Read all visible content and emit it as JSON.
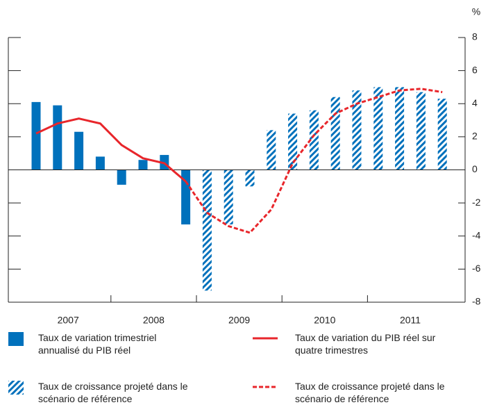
{
  "chart_data": {
    "type": "bar-line",
    "y_unit": "%",
    "year_labels": [
      "2007",
      "2008",
      "2009",
      "2010",
      "2011"
    ],
    "ylim": [
      -8,
      8
    ],
    "yticks": [
      -8,
      -6,
      -4,
      -2,
      0,
      2,
      4,
      6,
      8
    ],
    "series": [
      {
        "name": "Taux de variation trimestriel annualisé du PIB réel",
        "kind": "bar",
        "color": "#0071bc",
        "values": [
          4.1,
          3.9,
          2.3,
          0.8,
          -0.9,
          0.6,
          0.9,
          -3.3,
          null,
          null,
          null,
          null,
          null,
          null,
          null,
          null,
          null,
          null,
          null,
          null
        ]
      },
      {
        "name": "Taux de croissance projeté dans le scénario de référence",
        "kind": "hatched-bar",
        "color": "#0071bc",
        "values": [
          null,
          null,
          null,
          null,
          null,
          null,
          null,
          null,
          -7.3,
          -3.3,
          -1.0,
          2.4,
          3.4,
          3.6,
          4.4,
          4.8,
          5.0,
          5.0,
          4.7,
          4.3
        ]
      },
      {
        "name": "Taux de variation du PIB réel sur quatre trimestres",
        "kind": "line",
        "color": "#e8262b",
        "values": [
          2.2,
          2.8,
          3.1,
          2.8,
          1.5,
          0.7,
          0.4,
          -0.7,
          null,
          null,
          null,
          null,
          null,
          null,
          null,
          null,
          null,
          null,
          null,
          null
        ]
      },
      {
        "name": "Taux de croissance projeté dans le scénario de référence",
        "kind": "dashed-line",
        "color": "#e8262b",
        "values": [
          null,
          null,
          null,
          null,
          null,
          null,
          null,
          -0.7,
          -2.6,
          -3.4,
          -3.8,
          -2.4,
          0.4,
          2.1,
          3.4,
          4.0,
          4.4,
          4.8,
          4.9,
          4.7
        ]
      }
    ]
  }
}
